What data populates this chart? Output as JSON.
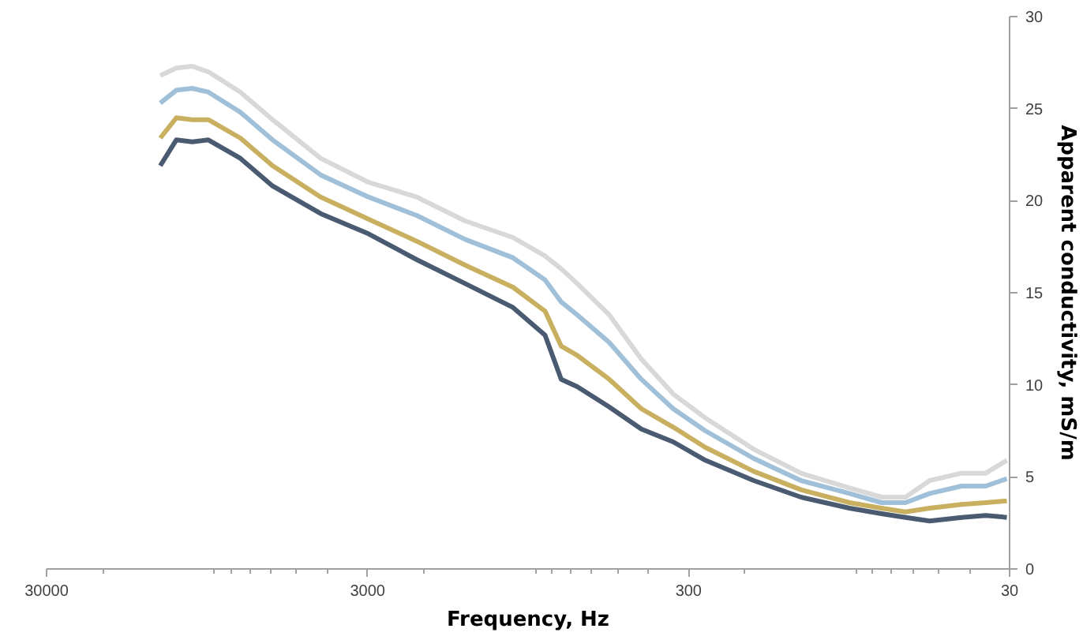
{
  "chart_data": {
    "type": "line",
    "xlabel": "Frequency, Hz",
    "ylabel": "Apparent conductivity, mS/m",
    "x": [
      13270,
      11830,
      10550,
      9400,
      7470,
      5930,
      4200,
      2980,
      2110,
      1490,
      1057,
      840,
      748,
      667,
      530,
      421,
      335,
      266,
      188,
      134,
      94.6,
      75.2,
      63.3,
      53.2,
      42.3,
      35.6,
      30.6
    ],
    "series": [
      {
        "color": "#4a5a70",
        "values": [
          21.9,
          23.3,
          23.2,
          23.3,
          22.3,
          20.8,
          19.3,
          18.2,
          16.8,
          15.5,
          14.2,
          12.7,
          10.3,
          9.9,
          8.8,
          7.6,
          6.9,
          5.9,
          4.8,
          3.9,
          3.3,
          3.0,
          2.8,
          2.6,
          2.8,
          2.9,
          2.8
        ]
      },
      {
        "color": "#c8b060",
        "values": [
          23.4,
          24.5,
          24.4,
          24.4,
          23.4,
          21.9,
          20.2,
          19.0,
          17.8,
          16.5,
          15.3,
          14.0,
          12.1,
          11.6,
          10.3,
          8.7,
          7.7,
          6.6,
          5.3,
          4.3,
          3.6,
          3.3,
          3.1,
          3.3,
          3.5,
          3.6,
          3.7
        ]
      },
      {
        "color": "#9fc0d8",
        "values": [
          25.3,
          26.0,
          26.1,
          25.9,
          24.8,
          23.3,
          21.4,
          20.2,
          19.2,
          17.9,
          16.9,
          15.7,
          14.5,
          13.8,
          12.3,
          10.3,
          8.7,
          7.5,
          6.0,
          4.8,
          4.1,
          3.6,
          3.6,
          4.1,
          4.5,
          4.5,
          4.9
        ]
      },
      {
        "color": "#d8d8d8",
        "values": [
          26.8,
          27.2,
          27.3,
          27.0,
          25.9,
          24.4,
          22.3,
          21.0,
          20.2,
          18.9,
          18.0,
          17.0,
          16.3,
          15.5,
          13.8,
          11.4,
          9.5,
          8.2,
          6.5,
          5.2,
          4.4,
          3.9,
          3.9,
          4.8,
          5.2,
          5.2,
          5.9
        ]
      }
    ],
    "log": "x",
    "xlim": [
      30000,
      30
    ],
    "xticks": [
      30000,
      3000,
      300,
      30
    ],
    "ylim": [
      0,
      30
    ],
    "yticks": [
      0,
      5,
      10,
      15,
      20,
      25,
      30
    ],
    "grid": false,
    "marker": "none",
    "line_style": "solid"
  }
}
